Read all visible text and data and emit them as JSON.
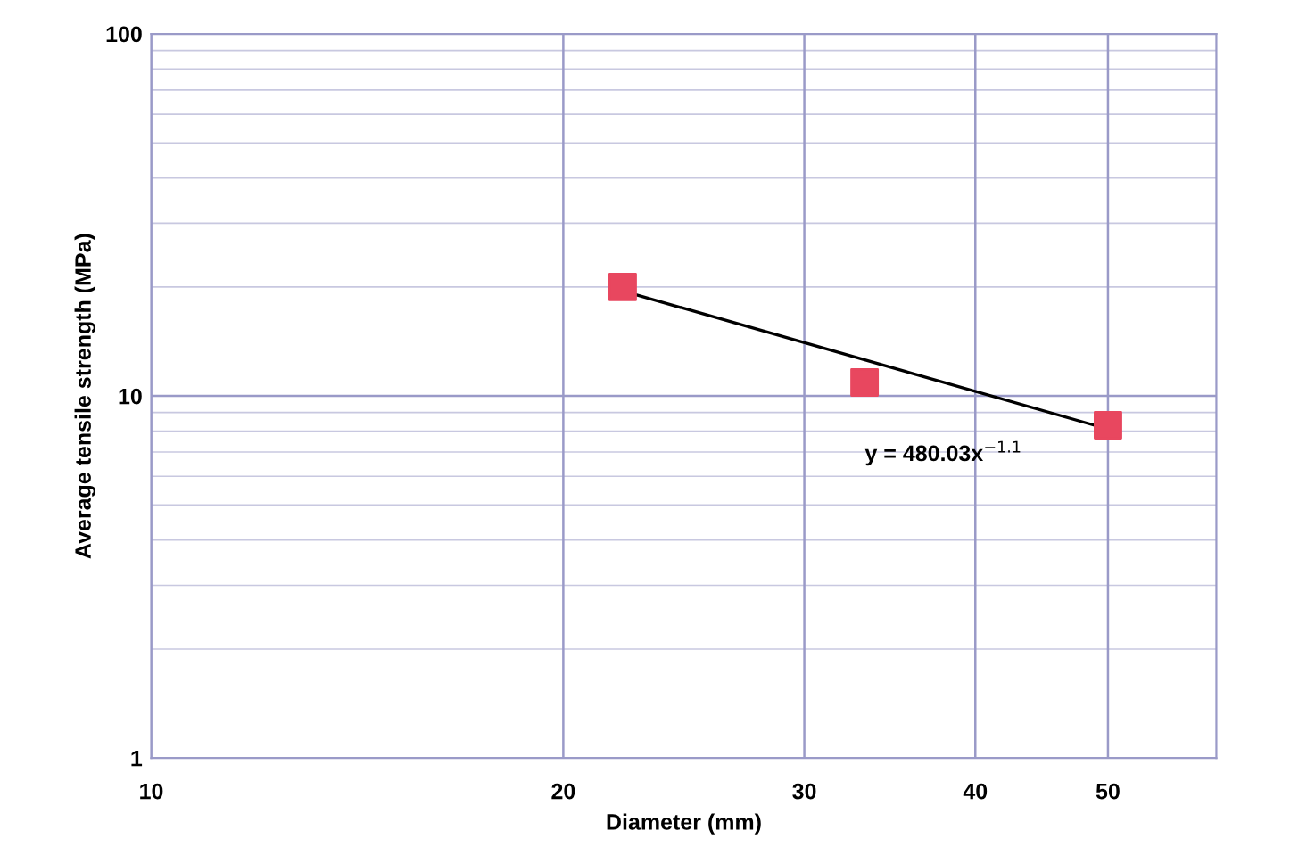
{
  "chart_data": {
    "type": "scatter",
    "xlabel": "Diameter (mm)",
    "ylabel": "Average tensile strength (MPa)",
    "log": "xy",
    "xlim": [
      10,
      60
    ],
    "xticks": [
      10,
      20,
      30,
      40,
      50
    ],
    "ylim": [
      1,
      100
    ],
    "yticks": [
      1,
      10,
      100
    ],
    "grid": true,
    "legend": false,
    "series": [
      {
        "marker": "square",
        "color": "#e8475f",
        "x": [
          22.1,
          33.2,
          50
        ],
        "values": [
          20,
          10.9,
          8.3
        ]
      },
      {
        "type": "line",
        "color": "#000000",
        "x": [
          22.1,
          50
        ],
        "values": [
          19.5,
          8.1
        ],
        "line_style": "solid",
        "marker": "none"
      }
    ],
    "annotations": [
      "y = 480.03x$^{−1.1}$"
    ]
  }
}
